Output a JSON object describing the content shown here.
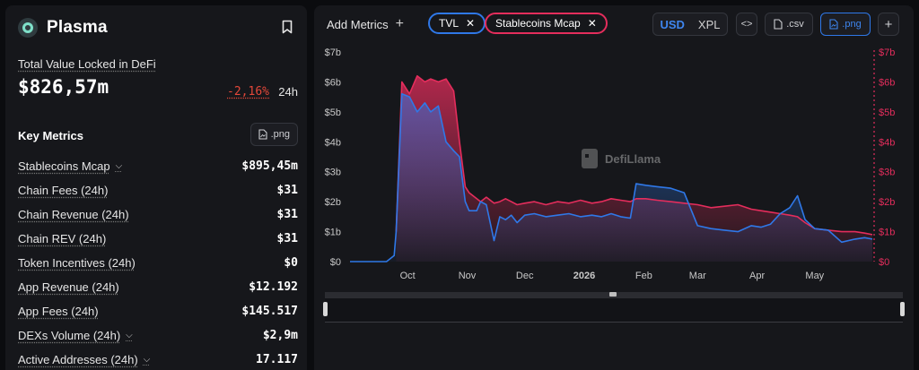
{
  "chain": {
    "name": "Plasma"
  },
  "tvl": {
    "label": "Total Value Locked in DeFi",
    "value": "$826,57m",
    "change": "-2,16%",
    "period": "24h"
  },
  "key_metrics": {
    "title": "Key Metrics",
    "png_label": ".png",
    "rows": [
      {
        "label": "Stablecoins Mcap",
        "value": "$895,45m",
        "dropdown": true
      },
      {
        "label": "Chain Fees (24h)",
        "value": "$31",
        "dropdown": false
      },
      {
        "label": "Chain Revenue (24h)",
        "value": "$31",
        "dropdown": false
      },
      {
        "label": "Chain REV (24h)",
        "value": "$31",
        "dropdown": false
      },
      {
        "label": "Token Incentives (24h)",
        "value": "$0",
        "dropdown": false
      },
      {
        "label": "App Revenue (24h)",
        "value": "$12.192",
        "dropdown": false
      },
      {
        "label": "App Fees (24h)",
        "value": "$145.517",
        "dropdown": false
      },
      {
        "label": "DEXs Volume (24h)",
        "value": "$2,9m",
        "dropdown": true
      },
      {
        "label": "Active Addresses (24h)",
        "value": "17.117",
        "dropdown": true
      }
    ]
  },
  "toolbar": {
    "add_metrics": "Add Metrics",
    "pills": [
      "TVL",
      "Stablecoins Mcap"
    ],
    "currency_on": "USD",
    "currency_off": "XPL",
    "embed": "<>",
    "csv": ".csv",
    "png": ".png",
    "add": "+"
  },
  "watermark": "DefiLlama",
  "colors": {
    "tvl": "#2f78e8",
    "stablecoins": "#e42d5c",
    "background": "#16171b"
  },
  "chart_data": {
    "type": "line",
    "x_ticks": [
      "Oct",
      "Nov",
      "Dec",
      "2026",
      "Feb",
      "Mar",
      "Apr",
      "May"
    ],
    "y_ticks_left": [
      "$0",
      "$1b",
      "$2b",
      "$3b",
      "$4b",
      "$5b",
      "$6b",
      "$7b"
    ],
    "y_ticks_right": [
      "$0",
      "$1b",
      "$2b",
      "$3b",
      "$4b",
      "$5b",
      "$6b",
      "$7b"
    ],
    "ylim": [
      0,
      7
    ],
    "x_range": [
      "2025-09-01",
      "2026-05-31"
    ],
    "series": [
      {
        "name": "TVL",
        "x": [
          "2025-09-01",
          "2025-09-20",
          "2025-09-24",
          "2025-09-25",
          "2025-09-28",
          "2025-10-02",
          "2025-10-06",
          "2025-10-10",
          "2025-10-13",
          "2025-10-17",
          "2025-10-21",
          "2025-10-25",
          "2025-10-28",
          "2025-10-31",
          "2025-11-02",
          "2025-11-06",
          "2025-11-08",
          "2025-11-11",
          "2025-11-15",
          "2025-11-18",
          "2025-11-21",
          "2025-11-24",
          "2025-11-27",
          "2025-12-01",
          "2025-12-06",
          "2025-12-12",
          "2025-12-18",
          "2025-12-24",
          "2025-12-30",
          "2026-01-05",
          "2026-01-10",
          "2026-01-15",
          "2026-01-20",
          "2026-01-25",
          "2026-01-28",
          "2026-02-02",
          "2026-02-08",
          "2026-02-15",
          "2026-02-22",
          "2026-03-01",
          "2026-03-08",
          "2026-03-15",
          "2026-03-22",
          "2026-03-29",
          "2026-04-03",
          "2026-04-08",
          "2026-04-13",
          "2026-04-18",
          "2026-04-22",
          "2026-04-26",
          "2026-05-01",
          "2026-05-08",
          "2026-05-15",
          "2026-05-22",
          "2026-05-27",
          "2026-05-31"
        ],
        "values": [
          0,
          0,
          0.2,
          1.0,
          5.6,
          5.5,
          5.0,
          5.3,
          5.0,
          5.2,
          4.0,
          3.7,
          3.5,
          2.0,
          1.7,
          1.7,
          2.0,
          1.9,
          0.7,
          1.5,
          1.4,
          1.55,
          1.3,
          1.55,
          1.6,
          1.5,
          1.55,
          1.6,
          1.5,
          1.55,
          1.5,
          1.6,
          1.5,
          1.45,
          2.6,
          2.55,
          2.5,
          2.45,
          2.3,
          1.2,
          1.1,
          1.05,
          1.0,
          1.2,
          1.15,
          1.25,
          1.6,
          1.8,
          2.2,
          1.4,
          1.1,
          1.05,
          0.65,
          0.75,
          0.8,
          0.75
        ]
      },
      {
        "name": "Stablecoins Mcap",
        "x": [
          "2025-09-01",
          "2025-09-20",
          "2025-09-24",
          "2025-09-25",
          "2025-09-28",
          "2025-10-02",
          "2025-10-06",
          "2025-10-10",
          "2025-10-13",
          "2025-10-17",
          "2025-10-21",
          "2025-10-25",
          "2025-10-28",
          "2025-10-31",
          "2025-11-02",
          "2025-11-06",
          "2025-11-08",
          "2025-11-11",
          "2025-11-15",
          "2025-11-18",
          "2025-11-21",
          "2025-11-24",
          "2025-11-27",
          "2025-12-01",
          "2025-12-06",
          "2025-12-12",
          "2025-12-18",
          "2025-12-24",
          "2025-12-30",
          "2026-01-05",
          "2026-01-10",
          "2026-01-15",
          "2026-01-20",
          "2026-01-25",
          "2026-01-28",
          "2026-02-02",
          "2026-02-08",
          "2026-02-15",
          "2026-02-22",
          "2026-03-01",
          "2026-03-08",
          "2026-03-15",
          "2026-03-22",
          "2026-03-29",
          "2026-04-03",
          "2026-04-08",
          "2026-04-13",
          "2026-04-18",
          "2026-04-22",
          "2026-04-26",
          "2026-05-01",
          "2026-05-08",
          "2026-05-15",
          "2026-05-22",
          "2026-05-27",
          "2026-05-31"
        ],
        "values": [
          null,
          null,
          null,
          1.0,
          6.0,
          5.6,
          6.2,
          6.0,
          6.1,
          6.0,
          6.1,
          5.7,
          4.0,
          2.5,
          2.3,
          2.1,
          2.0,
          2.15,
          1.95,
          2.0,
          2.1,
          2.0,
          1.9,
          1.95,
          2.0,
          1.9,
          2.0,
          1.95,
          2.05,
          1.95,
          2.0,
          2.1,
          2.05,
          2.0,
          2.1,
          2.1,
          2.05,
          2.0,
          1.95,
          1.9,
          1.8,
          1.85,
          1.9,
          1.75,
          1.7,
          1.65,
          1.6,
          1.55,
          1.5,
          1.3,
          1.1,
          1.05,
          1.0,
          1.0,
          0.95,
          0.9
        ]
      }
    ]
  }
}
